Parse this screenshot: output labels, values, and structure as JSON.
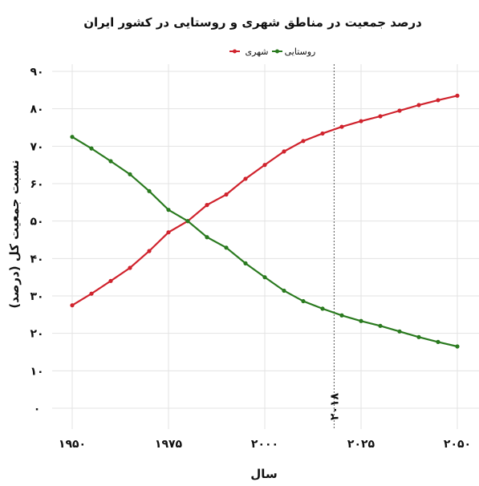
{
  "chart_data": {
    "type": "line",
    "title": "درصد جمعیت در مناطق شهری و روستایی در کشور ایران",
    "xlabel": "سال",
    "ylabel": "نسبت جمعیت کل (درصد)",
    "xlim": [
      1950,
      2050
    ],
    "ylim": [
      0,
      90
    ],
    "x_ticks": [
      1950,
      1975,
      2000,
      2025,
      2050
    ],
    "x_tick_labels": [
      "۱۹۵۰",
      "۱۹۷۵",
      "۲۰۰۰",
      "۲۰۲۵",
      "۲۰۵۰"
    ],
    "y_ticks": [
      0,
      10,
      20,
      30,
      40,
      50,
      60,
      70,
      80,
      90
    ],
    "y_tick_labels": [
      "۰",
      "۱۰",
      "۲۰",
      "۳۰",
      "۴۰",
      "۵۰",
      "۶۰",
      "۷۰",
      "۸۰",
      "۹۰"
    ],
    "grid": true,
    "legend_position": "top-center",
    "x": [
      1950,
      1955,
      1960,
      1965,
      1970,
      1975,
      1980,
      1985,
      1990,
      1995,
      2000,
      2005,
      2010,
      2015,
      2020,
      2025,
      2030,
      2035,
      2040,
      2045,
      2050
    ],
    "series": [
      {
        "name": "شهری",
        "color": "#d0232d",
        "values": [
          27.5,
          30.6,
          34.0,
          37.5,
          42.0,
          47.0,
          50.0,
          54.3,
          57.1,
          61.3,
          65.0,
          68.6,
          71.4,
          73.4,
          75.2,
          76.7,
          78.0,
          79.5,
          81.0,
          82.3,
          83.5
        ]
      },
      {
        "name": "روستایی",
        "color": "#2a7a1f",
        "values": [
          72.5,
          69.4,
          66.0,
          62.5,
          58.0,
          53.0,
          50.0,
          45.7,
          42.9,
          38.7,
          35.0,
          31.4,
          28.6,
          26.6,
          24.8,
          23.3,
          22.0,
          20.5,
          19.0,
          17.7,
          16.5
        ]
      }
    ],
    "vertical_marker": {
      "x": 2018,
      "label": "۲۰۱۸"
    }
  },
  "legend": {
    "urban": "شهری",
    "rural": "روستایی"
  }
}
